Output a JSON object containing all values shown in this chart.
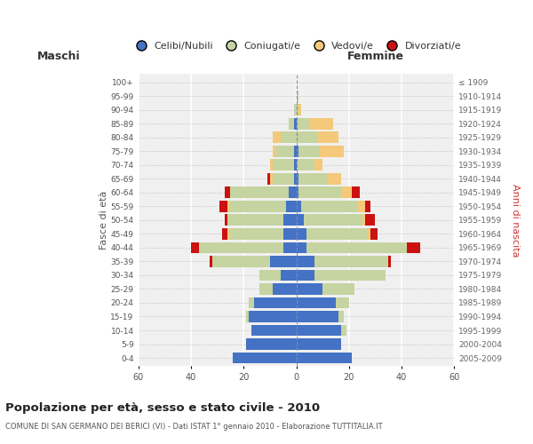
{
  "age_groups_bottom_to_top": [
    "0-4",
    "5-9",
    "10-14",
    "15-19",
    "20-24",
    "25-29",
    "30-34",
    "35-39",
    "40-44",
    "45-49",
    "50-54",
    "55-59",
    "60-64",
    "65-69",
    "70-74",
    "75-79",
    "80-84",
    "85-89",
    "90-94",
    "95-99",
    "100+"
  ],
  "birth_years_bottom_to_top": [
    "2005-2009",
    "2000-2004",
    "1995-1999",
    "1990-1994",
    "1985-1989",
    "1980-1984",
    "1975-1979",
    "1970-1974",
    "1965-1969",
    "1960-1964",
    "1955-1959",
    "1950-1954",
    "1945-1949",
    "1940-1944",
    "1935-1939",
    "1930-1934",
    "1925-1929",
    "1920-1924",
    "1915-1919",
    "1910-1914",
    "≤ 1909"
  ],
  "males": {
    "celibi": [
      24,
      19,
      17,
      18,
      16,
      9,
      6,
      10,
      5,
      5,
      5,
      4,
      3,
      1,
      1,
      1,
      0,
      1,
      0,
      0,
      0
    ],
    "coniugati": [
      0,
      0,
      0,
      1,
      2,
      5,
      8,
      22,
      32,
      20,
      21,
      21,
      22,
      8,
      8,
      7,
      6,
      2,
      1,
      0,
      0
    ],
    "vedovi": [
      0,
      0,
      0,
      0,
      0,
      0,
      0,
      0,
      0,
      1,
      0,
      1,
      0,
      1,
      1,
      1,
      3,
      0,
      0,
      0,
      0
    ],
    "divorziati": [
      0,
      0,
      0,
      0,
      0,
      0,
      0,
      1,
      3,
      2,
      1,
      3,
      2,
      1,
      0,
      0,
      0,
      0,
      0,
      0,
      0
    ]
  },
  "females": {
    "nubili": [
      21,
      17,
      17,
      16,
      15,
      10,
      7,
      7,
      4,
      4,
      3,
      2,
      1,
      1,
      0,
      1,
      0,
      0,
      0,
      0,
      0
    ],
    "coniugate": [
      0,
      0,
      2,
      2,
      5,
      12,
      27,
      28,
      38,
      23,
      22,
      21,
      16,
      11,
      7,
      8,
      8,
      5,
      1,
      1,
      0
    ],
    "vedove": [
      0,
      0,
      0,
      0,
      0,
      0,
      0,
      0,
      0,
      1,
      1,
      3,
      4,
      5,
      3,
      9,
      8,
      9,
      1,
      0,
      0
    ],
    "divorziate": [
      0,
      0,
      0,
      0,
      0,
      0,
      0,
      1,
      5,
      3,
      4,
      2,
      3,
      0,
      0,
      0,
      0,
      0,
      0,
      0,
      0
    ]
  },
  "colors": {
    "celibi_nubili": "#4472C4",
    "coniugati_e": "#C5D4A0",
    "vedovi_e": "#F5C97A",
    "divorziati_e": "#CC1111"
  },
  "xlim": 60,
  "title": "Popolazione per età, sesso e stato civile - 2010",
  "subtitle": "COMUNE DI SAN GERMANO DEI BERICI (VI) - Dati ISTAT 1° gennaio 2010 - Elaborazione TUTTITALIA.IT",
  "ylabel_left": "Fasce di età",
  "ylabel_right": "Anni di nascita",
  "xlabel_left": "Maschi",
  "xlabel_right": "Femmine",
  "legend_labels": [
    "Celibi/Nubili",
    "Coniugati/e",
    "Vedovi/e",
    "Divorziati/e"
  ],
  "bg_color": "#FFFFFF",
  "plot_bg": "#F0F0F0"
}
